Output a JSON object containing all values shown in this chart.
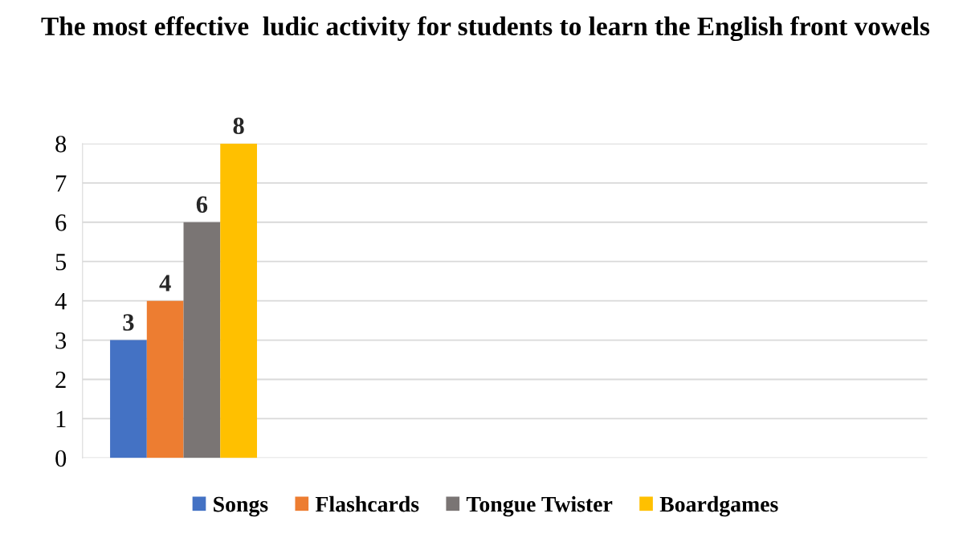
{
  "chart_data": {
    "type": "bar",
    "title": "The most effective  ludic activity for students to learn the English front vowels",
    "categories": [
      null
    ],
    "series": [
      {
        "name": "Songs",
        "color": "#4472c4",
        "values": [
          3
        ]
      },
      {
        "name": "Flashcards",
        "color": "#ed7d31",
        "values": [
          4
        ]
      },
      {
        "name": "Tongue Twister",
        "color": "#7a7574",
        "values": [
          6
        ]
      },
      {
        "name": "Boardgames",
        "color": "#ffc000",
        "values": [
          8
        ]
      }
    ],
    "ylim": [
      0,
      8
    ],
    "yticks": [
      0,
      1,
      2,
      3,
      4,
      5,
      6,
      7,
      8
    ],
    "grid": "y",
    "legend": "bottom",
    "data_labels": true
  }
}
